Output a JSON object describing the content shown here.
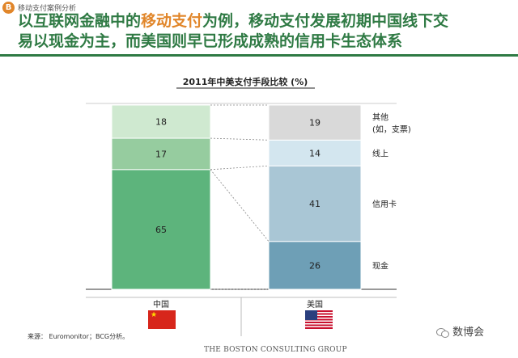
{
  "header": {
    "badge": "B",
    "section": "移动支付案例分析",
    "title_line1_pre": "以互联网金融中的",
    "title_line1_highlight": "移动支付",
    "title_line1_post": "为例，移动支付发展初期中国线下交",
    "title_line2": "易以现金为主，而美国则早已形成成熟的信用卡生态体系"
  },
  "chart_data": {
    "type": "bar",
    "stacked": true,
    "title": "2011年中美支付手段比较 (%)",
    "categories": [
      "中国",
      "美国"
    ],
    "series": [
      {
        "name": "现金",
        "values": [
          65,
          26
        ]
      },
      {
        "name": "信用卡",
        "values": [
          0,
          41
        ]
      },
      {
        "name": "线上",
        "values": [
          17,
          14
        ]
      },
      {
        "name": "其他\n(如，支票)",
        "values": [
          18,
          19
        ]
      }
    ],
    "china_colors": [
      "#5db47c",
      "#5db47c",
      "#96cc9f",
      "#cfe9d0"
    ],
    "us_colors": [
      "#6e9fb6",
      "#a9c6d5",
      "#d3e6ef",
      "#d9d9d9"
    ],
    "ylim": [
      0,
      100
    ],
    "legend": "right"
  },
  "footer": {
    "source": "来源：  Euromonitor；BCG分析。",
    "logo": "THE BOSTON CONSULTING GROUP",
    "watermark": "数博会"
  }
}
